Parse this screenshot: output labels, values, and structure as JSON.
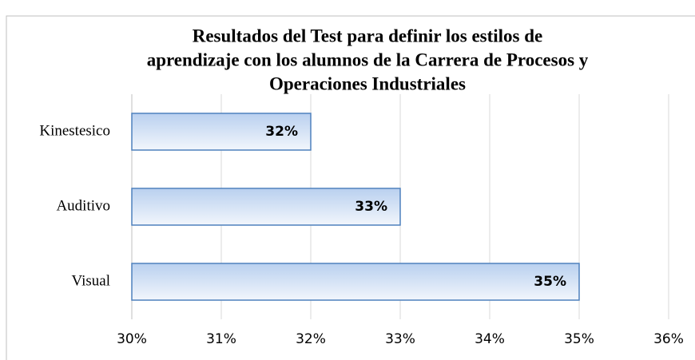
{
  "chart_data": {
    "type": "bar",
    "orientation": "horizontal",
    "title": [
      "Resultados del Test para definir los estilos de",
      "aprendizaje con los alumnos de la Carrera de Procesos y",
      "Operaciones Industriales"
    ],
    "categories": [
      "Kinestesico",
      "Auditivo",
      "Visual"
    ],
    "values": [
      32,
      33,
      35
    ],
    "value_labels": [
      "32%",
      "33%",
      "35%"
    ],
    "color": "#4f81bd",
    "xlim": [
      30,
      36
    ],
    "xticks": [
      {
        "value": 30,
        "label": "30%"
      },
      {
        "value": 31,
        "label": "31%"
      },
      {
        "value": 32,
        "label": "32%"
      },
      {
        "value": 33,
        "label": "33%"
      },
      {
        "value": 34,
        "label": "34%"
      },
      {
        "value": 35,
        "label": "35%"
      },
      {
        "value": 36,
        "label": "36%"
      }
    ],
    "grid": true
  }
}
